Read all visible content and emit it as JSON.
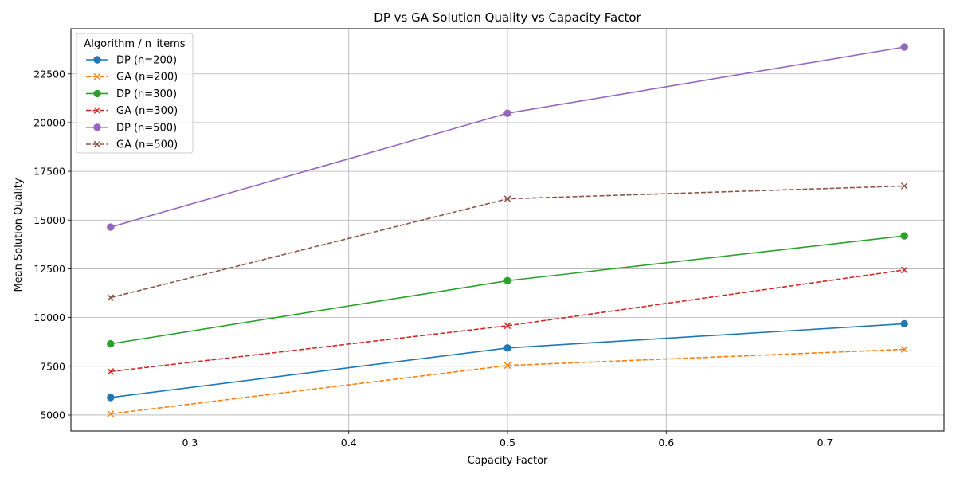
{
  "chart_data": {
    "type": "line",
    "title": "DP vs GA Solution Quality vs Capacity Factor",
    "xlabel": "Capacity Factor",
    "ylabel": "Mean Solution Quality",
    "x": [
      0.25,
      0.5,
      0.75
    ],
    "xlim": [
      0.225,
      0.775
    ],
    "ylim": [
      4180,
      24820
    ],
    "xticks": [
      0.3,
      0.4,
      0.5,
      0.6,
      0.7
    ],
    "xtick_labels": [
      "0.3",
      "0.4",
      "0.5",
      "0.6",
      "0.7"
    ],
    "yticks": [
      5000,
      7500,
      10000,
      12500,
      15000,
      17500,
      20000,
      22500
    ],
    "ytick_labels": [
      "5000",
      "7500",
      "10000",
      "12500",
      "15000",
      "17500",
      "20000",
      "22500"
    ],
    "grid": true,
    "legend_title": "Algorithm / n_items",
    "legend_position": "top-left",
    "series": [
      {
        "name": "DP (n=200)",
        "values": [
          5900,
          8440,
          9680
        ],
        "color": "#1f77b4",
        "linestyle": "solid",
        "marker": "circle"
      },
      {
        "name": "GA (n=200)",
        "values": [
          5060,
          7540,
          8370
        ],
        "color": "#ff7f0e",
        "linestyle": "dashed",
        "marker": "x"
      },
      {
        "name": "DP (n=300)",
        "values": [
          8650,
          11890,
          14190
        ],
        "color": "#2ca02c",
        "linestyle": "solid",
        "marker": "circle"
      },
      {
        "name": "GA (n=300)",
        "values": [
          7230,
          9580,
          12440
        ],
        "color": "#d62728",
        "linestyle": "dashed",
        "marker": "x"
      },
      {
        "name": "DP (n=500)",
        "values": [
          14640,
          20480,
          23880
        ],
        "color": "#9467bd",
        "linestyle": "solid",
        "marker": "circle"
      },
      {
        "name": "GA (n=500)",
        "values": [
          11020,
          16090,
          16750
        ],
        "color": "#8c564b",
        "linestyle": "dashed",
        "marker": "x"
      }
    ]
  }
}
